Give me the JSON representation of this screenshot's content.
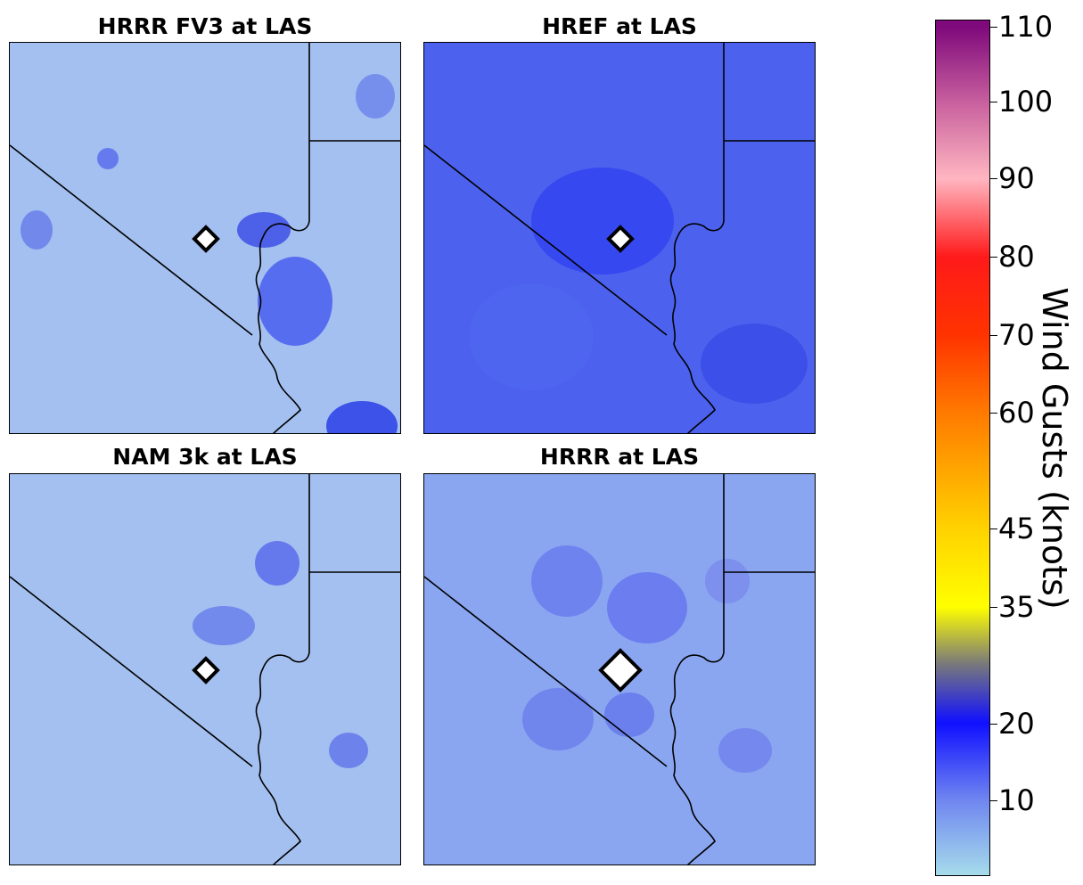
{
  "panels": [
    {
      "title": "HRRR FV3 at LAS",
      "tone": "light",
      "marker": "small"
    },
    {
      "title": "HREF at LAS",
      "tone": "dark",
      "marker": "small"
    },
    {
      "title": "NAM 3k at LAS",
      "tone": "light",
      "marker": "small"
    },
    {
      "title": "HRRR at LAS",
      "tone": "mid",
      "marker": "large"
    }
  ],
  "colorbar": {
    "label": "Wind Gusts (knots)",
    "ticks": [
      "110",
      "100",
      "90",
      "80",
      "70",
      "60",
      "45",
      "35",
      "20",
      "10"
    ],
    "stops": [
      {
        "value": 110,
        "color": "#7f0a7c"
      },
      {
        "value": 100,
        "color": "#c8609e"
      },
      {
        "value": 90,
        "color": "#ffb6c1"
      },
      {
        "value": 80,
        "color": "#ff1a1a"
      },
      {
        "value": 70,
        "color": "#ff3300"
      },
      {
        "value": 60,
        "color": "#ff7a00"
      },
      {
        "value": 45,
        "color": "#ffd200"
      },
      {
        "value": 35,
        "color": "#ffff00"
      },
      {
        "value": 27,
        "color": "#7a7a7a"
      },
      {
        "value": 20,
        "color": "#1010ff"
      },
      {
        "value": 10,
        "color": "#6f86f0"
      },
      {
        "value": 0,
        "color": "#a6dceb"
      }
    ]
  },
  "colors": {
    "light": "#a4c0f0",
    "mid": "#8aa6f0",
    "dark": "#4c62ee"
  }
}
